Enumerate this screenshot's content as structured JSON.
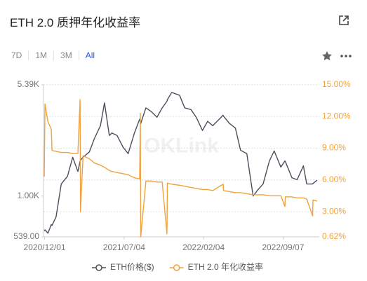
{
  "header": {
    "title": "ETH 2.0 质押年化收益率"
  },
  "toolbar": {
    "tabs": [
      "7D",
      "1M",
      "3M",
      "All"
    ],
    "active_tab_index": 3
  },
  "chart_data": {
    "type": "line",
    "watermark": "OKLink",
    "grid": true,
    "legend": "bottom",
    "x": [
      "2020/11/30",
      "2020/12/02",
      "2020/12/10",
      "2020/12/19",
      "2020/12/21",
      "2021/01/01",
      "2021/01/15",
      "2021/02/01",
      "2021/02/15",
      "2021/03/01",
      "2021/03/07",
      "2021/03/08",
      "2021/03/15",
      "2021/04/01",
      "2021/04/15",
      "2021/05/01",
      "2021/05/12",
      "2021/05/25",
      "2021/06/01",
      "2021/06/15",
      "2021/07/01",
      "2021/07/15",
      "2021/08/01",
      "2021/08/15",
      "2021/08/17",
      "2021/08/18",
      "2021/09/01",
      "2021/09/15",
      "2021/10/01",
      "2021/10/15",
      "2021/10/28",
      "2021/10/29",
      "2021/11/10",
      "2021/12/01",
      "2021/12/15",
      "2022/01/01",
      "2022/01/15",
      "2022/02/01",
      "2022/02/15",
      "2022/03/01",
      "2022/03/29",
      "2022/03/30",
      "2022/04/15",
      "2022/05/01",
      "2022/05/15",
      "2022/06/01",
      "2022/06/18",
      "2022/07/01",
      "2022/07/15",
      "2022/08/01",
      "2022/08/14",
      "2022/09/01",
      "2022/09/12",
      "2022/09/13",
      "2022/10/01",
      "2022/10/15",
      "2022/11/01",
      "2022/11/10",
      "2022/11/26",
      "2022/11/27",
      "2022/12/08"
    ],
    "xlim": [
      "2020/11/28",
      "2022/12/14"
    ],
    "xticks": [
      "2020/12/01",
      "2021/07/04",
      "2022/02/04",
      "2022/09/07"
    ],
    "ylim": [
      539,
      5390
    ],
    "ylog": true,
    "yticks": [
      {
        "value": 539,
        "label": "539.00"
      },
      {
        "value": 1000,
        "label": "1.00K"
      },
      {
        "value": 5390,
        "label": "5.39K"
      }
    ],
    "y2lim": [
      0.62,
      15
    ],
    "y2ticks": [
      {
        "value": 0.62,
        "label": "0.62%"
      },
      {
        "value": 3,
        "label": "3.00%"
      },
      {
        "value": 6,
        "label": "6.00%"
      },
      {
        "value": 9,
        "label": "9.00%"
      },
      {
        "value": 12,
        "label": "12.00%"
      },
      {
        "value": 15,
        "label": "15.00%"
      }
    ],
    "series": [
      {
        "name": "ETH价格($)",
        "color": "#4b4f5c",
        "values": [
          590,
          600,
          570,
          650,
          640,
          730,
          1200,
          1350,
          1800,
          1450,
          1700,
          1720,
          1800,
          1950,
          2400,
          2900,
          4100,
          2500,
          2600,
          2500,
          2100,
          1900,
          2600,
          3200,
          3100,
          3000,
          3800,
          3600,
          3300,
          3800,
          4200,
          4300,
          4800,
          4600,
          3800,
          3700,
          3300,
          2700,
          3100,
          2900,
          3400,
          3350,
          3000,
          2800,
          2000,
          1900,
          1000,
          1100,
          1200,
          1700,
          1980,
          1550,
          1700,
          1690,
          1320,
          1280,
          1580,
          1200,
          1200,
          1210,
          1270
        ]
      },
      {
        "name": "ETH 2.0 年化收益率",
        "color": "#f0a33c",
        "axis": "y2",
        "values": [
          6.3,
          13.2,
          11.5,
          10.8,
          8.8,
          8.7,
          8.6,
          8.6,
          8.5,
          8.5,
          13.6,
          3.0,
          8.3,
          8.0,
          7.6,
          7.4,
          7.2,
          6.9,
          6.8,
          6.7,
          6.6,
          6.5,
          6.2,
          6.1,
          12.3,
          0.62,
          5.9,
          5.9,
          5.8,
          5.8,
          0.9,
          5.7,
          5.6,
          5.5,
          5.4,
          5.3,
          5.2,
          5.1,
          5.1,
          5.0,
          5.6,
          5.0,
          4.9,
          4.8,
          4.8,
          4.7,
          4.6,
          4.6,
          4.6,
          4.5,
          4.5,
          4.5,
          3.5,
          4.4,
          4.4,
          4.3,
          4.3,
          4.2,
          2.6,
          4.1,
          4.0
        ]
      }
    ]
  }
}
